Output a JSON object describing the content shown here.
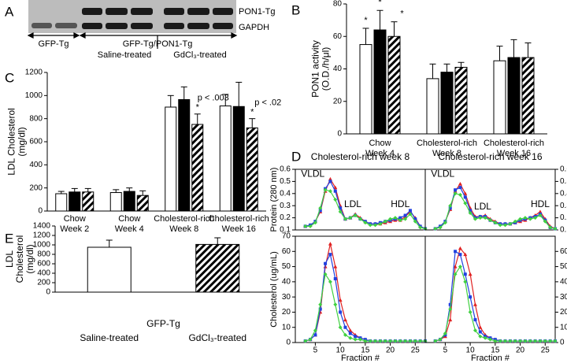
{
  "panel_labels": [
    "A",
    "B",
    "C",
    "D",
    "E"
  ],
  "blot": {
    "bands": [
      "PON1-Tg",
      "GAPDH"
    ],
    "groups": [
      "GFP-Tg",
      "GFP-Tg/PON1-Tg"
    ],
    "treatments": [
      "Saline-treated",
      "GdCl₃-treated"
    ]
  },
  "chart_data": [
    {
      "type": "bar",
      "ylabel": [
        "PON1 activity",
        "(O.D./h/μl)"
      ],
      "categories": [
        [
          "Chow",
          "Week 4"
        ],
        [
          "Cholesterol-rich",
          "Week 8"
        ],
        [
          "Cholesterol-rich",
          "Week 16"
        ]
      ],
      "series": [
        {
          "color": "#ffffff",
          "values": [
            55,
            34,
            45
          ],
          "errors": [
            10,
            9,
            9
          ]
        },
        {
          "color": "#000000",
          "values": [
            64,
            38,
            47
          ],
          "errors": [
            12,
            5,
            11
          ]
        },
        {
          "color": "hatch",
          "values": [
            60,
            41,
            47
          ],
          "errors": [
            9,
            3,
            9
          ]
        }
      ],
      "ylim": [
        0,
        80
      ],
      "yticks": [
        0,
        20,
        40,
        60,
        80
      ],
      "annotations": [
        "*",
        "*",
        "*"
      ]
    },
    {
      "type": "bar",
      "ylabel": [
        "LDL Cholesterol",
        "(mg/dl)"
      ],
      "categories": [
        [
          "Chow",
          "Week 2"
        ],
        [
          "Chow",
          "Week 4"
        ],
        [
          "Cholesterol-rich",
          "Week 8"
        ],
        [
          "Cholesterol-rich",
          "Week 16"
        ]
      ],
      "series": [
        {
          "color": "#ffffff",
          "values": [
            150,
            160,
            900,
            910
          ],
          "errors": [
            20,
            25,
            100,
            100
          ]
        },
        {
          "color": "#000000",
          "values": [
            165,
            170,
            965,
            905
          ],
          "errors": [
            30,
            30,
            110,
            210
          ]
        },
        {
          "color": "hatch",
          "values": [
            165,
            135,
            750,
            720
          ],
          "errors": [
            30,
            40,
            90,
            80
          ]
        }
      ],
      "ylim": [
        0,
        1200
      ],
      "yticks": [
        0,
        200,
        400,
        600,
        800,
        1000,
        1200
      ],
      "annotations": [
        "p < .003",
        "*",
        "p < .02",
        "*"
      ]
    },
    {
      "type": "bar",
      "ylabel": [
        "LDL",
        "Cholesterol",
        "(mg/dl)"
      ],
      "group_label": "GFP-Tg",
      "categories": [
        "Saline-treated",
        "GdCl₃-treated"
      ],
      "values": [
        950,
        1010
      ],
      "errors": [
        150,
        140
      ],
      "colors": [
        "#ffffff",
        "hatch"
      ],
      "ylim": [
        0,
        1400
      ],
      "yticks": [
        0,
        200,
        400,
        600,
        800,
        1000,
        1200,
        1400
      ]
    },
    {
      "type": "line",
      "title": "Cholesterol-rich week 8",
      "ylabel": "Protein (280 nm)",
      "x": [
        3,
        4,
        5,
        6,
        7,
        8,
        9,
        10,
        11,
        12,
        13,
        14,
        15,
        16,
        17,
        18,
        19,
        20,
        21,
        22,
        23,
        24,
        25,
        26,
        27
      ],
      "series": [
        {
          "color": "#e02020",
          "marker": "triangle",
          "values": [
            0.13,
            0.14,
            0.17,
            0.25,
            0.42,
            0.52,
            0.45,
            0.3,
            0.19,
            0.2,
            0.23,
            0.2,
            0.17,
            0.15,
            0.15,
            0.15,
            0.16,
            0.17,
            0.18,
            0.18,
            0.21,
            0.25,
            0.2,
            0.13,
            0.11
          ]
        },
        {
          "color": "#2040e0",
          "marker": "square",
          "values": [
            0.13,
            0.14,
            0.17,
            0.26,
            0.44,
            0.5,
            0.42,
            0.28,
            0.19,
            0.2,
            0.22,
            0.19,
            0.17,
            0.15,
            0.15,
            0.16,
            0.17,
            0.18,
            0.19,
            0.2,
            0.22,
            0.26,
            0.19,
            0.13,
            0.11
          ]
        },
        {
          "color": "#40d040",
          "marker": "diamond",
          "values": [
            0.13,
            0.13,
            0.16,
            0.28,
            0.43,
            0.42,
            0.35,
            0.25,
            0.19,
            0.2,
            0.22,
            0.19,
            0.16,
            0.14,
            0.14,
            0.15,
            0.17,
            0.19,
            0.2,
            0.18,
            0.19,
            0.23,
            0.17,
            0.12,
            0.11
          ]
        }
      ],
      "xlim": [
        1,
        27
      ],
      "ylim": [
        0.1,
        0.6
      ],
      "yticks": [
        0.1,
        0.2,
        0.3,
        0.4,
        0.5,
        0.6
      ],
      "ytick_side": "left",
      "annotations": [
        "VLDL",
        "LDL",
        "HDL"
      ]
    },
    {
      "type": "line",
      "title": "Cholesterol-rich week 16",
      "x": [
        3,
        4,
        5,
        6,
        7,
        8,
        9,
        10,
        11,
        12,
        13,
        14,
        15,
        16,
        17,
        18,
        19,
        20,
        21,
        22,
        23,
        24,
        25,
        26,
        27
      ],
      "series": [
        {
          "color": "#e02020",
          "marker": "triangle",
          "values": [
            0.11,
            0.13,
            0.17,
            0.27,
            0.42,
            0.48,
            0.4,
            0.28,
            0.21,
            0.21,
            0.22,
            0.19,
            0.17,
            0.15,
            0.15,
            0.15,
            0.16,
            0.17,
            0.18,
            0.2,
            0.22,
            0.25,
            0.19,
            0.13,
            0.11
          ]
        },
        {
          "color": "#2040e0",
          "marker": "square",
          "values": [
            0.11,
            0.13,
            0.17,
            0.28,
            0.43,
            0.45,
            0.37,
            0.26,
            0.2,
            0.21,
            0.21,
            0.18,
            0.16,
            0.15,
            0.15,
            0.15,
            0.16,
            0.18,
            0.19,
            0.2,
            0.21,
            0.23,
            0.18,
            0.12,
            0.11
          ]
        },
        {
          "color": "#40d040",
          "marker": "diamond",
          "values": [
            0.11,
            0.12,
            0.16,
            0.3,
            0.4,
            0.39,
            0.32,
            0.24,
            0.19,
            0.2,
            0.2,
            0.18,
            0.16,
            0.14,
            0.14,
            0.15,
            0.17,
            0.19,
            0.2,
            0.19,
            0.2,
            0.22,
            0.17,
            0.12,
            0.11
          ]
        }
      ],
      "xlim": [
        1,
        27
      ],
      "ylim": [
        0.1,
        0.6
      ],
      "yticks": [
        0.1,
        0.2,
        0.3,
        0.4,
        0.5,
        0.6
      ],
      "ytick_side": "right",
      "annotations": [
        "VLDL",
        "LDL",
        "HDL"
      ]
    },
    {
      "type": "line",
      "ylabel": "Cholesterol (ug/mL)",
      "xlabel": "Fraction #",
      "x": [
        3,
        4,
        5,
        6,
        7,
        8,
        9,
        10,
        11,
        12,
        13,
        14,
        15,
        16,
        17,
        18,
        19,
        20,
        21,
        22,
        23,
        24,
        25,
        26,
        27
      ],
      "series": [
        {
          "color": "#e02020",
          "marker": "triangle",
          "values": [
            1,
            2,
            5,
            20,
            50,
            65,
            50,
            28,
            15,
            8,
            5,
            3,
            2,
            1,
            1,
            1,
            1,
            1,
            1,
            1,
            1,
            1,
            1,
            1,
            1
          ]
        },
        {
          "color": "#2040e0",
          "marker": "square",
          "values": [
            1,
            2,
            5,
            22,
            52,
            58,
            42,
            20,
            10,
            6,
            4,
            3,
            2,
            1,
            1,
            1,
            1,
            1,
            1,
            1,
            1,
            1,
            1,
            1,
            1
          ]
        },
        {
          "color": "#40d040",
          "marker": "diamond",
          "values": [
            1,
            2,
            8,
            25,
            45,
            40,
            25,
            10,
            5,
            3,
            2,
            2,
            1,
            1,
            1,
            1,
            1,
            1,
            1,
            1,
            1,
            1,
            1,
            1,
            1
          ]
        }
      ],
      "xlim": [
        1,
        27
      ],
      "xticks": [
        5,
        10,
        15,
        20,
        25
      ],
      "ylim": [
        0,
        70
      ],
      "yticks": [
        0,
        10,
        20,
        30,
        40,
        50,
        60,
        70
      ],
      "ytick_side": "left"
    },
    {
      "type": "line",
      "xlabel": "Fraction #",
      "x": [
        3,
        4,
        5,
        6,
        7,
        8,
        9,
        10,
        11,
        12,
        13,
        14,
        15,
        16,
        17,
        18,
        19,
        20,
        21,
        22,
        23,
        24,
        25,
        26,
        27
      ],
      "series": [
        {
          "color": "#e02020",
          "marker": "triangle",
          "values": [
            1,
            2,
            4,
            15,
            50,
            62,
            58,
            45,
            25,
            10,
            5,
            3,
            2,
            1,
            1,
            1,
            1,
            1,
            1,
            1,
            1,
            1,
            1,
            1,
            1
          ]
        },
        {
          "color": "#2040e0",
          "marker": "square",
          "values": [
            1,
            2,
            5,
            25,
            60,
            58,
            45,
            30,
            15,
            7,
            4,
            3,
            2,
            1,
            1,
            1,
            1,
            1,
            1,
            1,
            1,
            1,
            1,
            1,
            1
          ]
        },
        {
          "color": "#40d040",
          "marker": "diamond",
          "values": [
            1,
            2,
            6,
            22,
            45,
            50,
            40,
            20,
            8,
            4,
            3,
            2,
            1,
            1,
            1,
            1,
            1,
            1,
            1,
            1,
            1,
            1,
            1,
            1,
            1
          ]
        }
      ],
      "xlim": [
        1,
        27
      ],
      "xticks": [
        5,
        10,
        15,
        20,
        25
      ],
      "ylim": [
        0,
        70
      ],
      "yticks": [
        0,
        10,
        20,
        30,
        40,
        50,
        60
      ],
      "ytick_side": "right"
    }
  ]
}
